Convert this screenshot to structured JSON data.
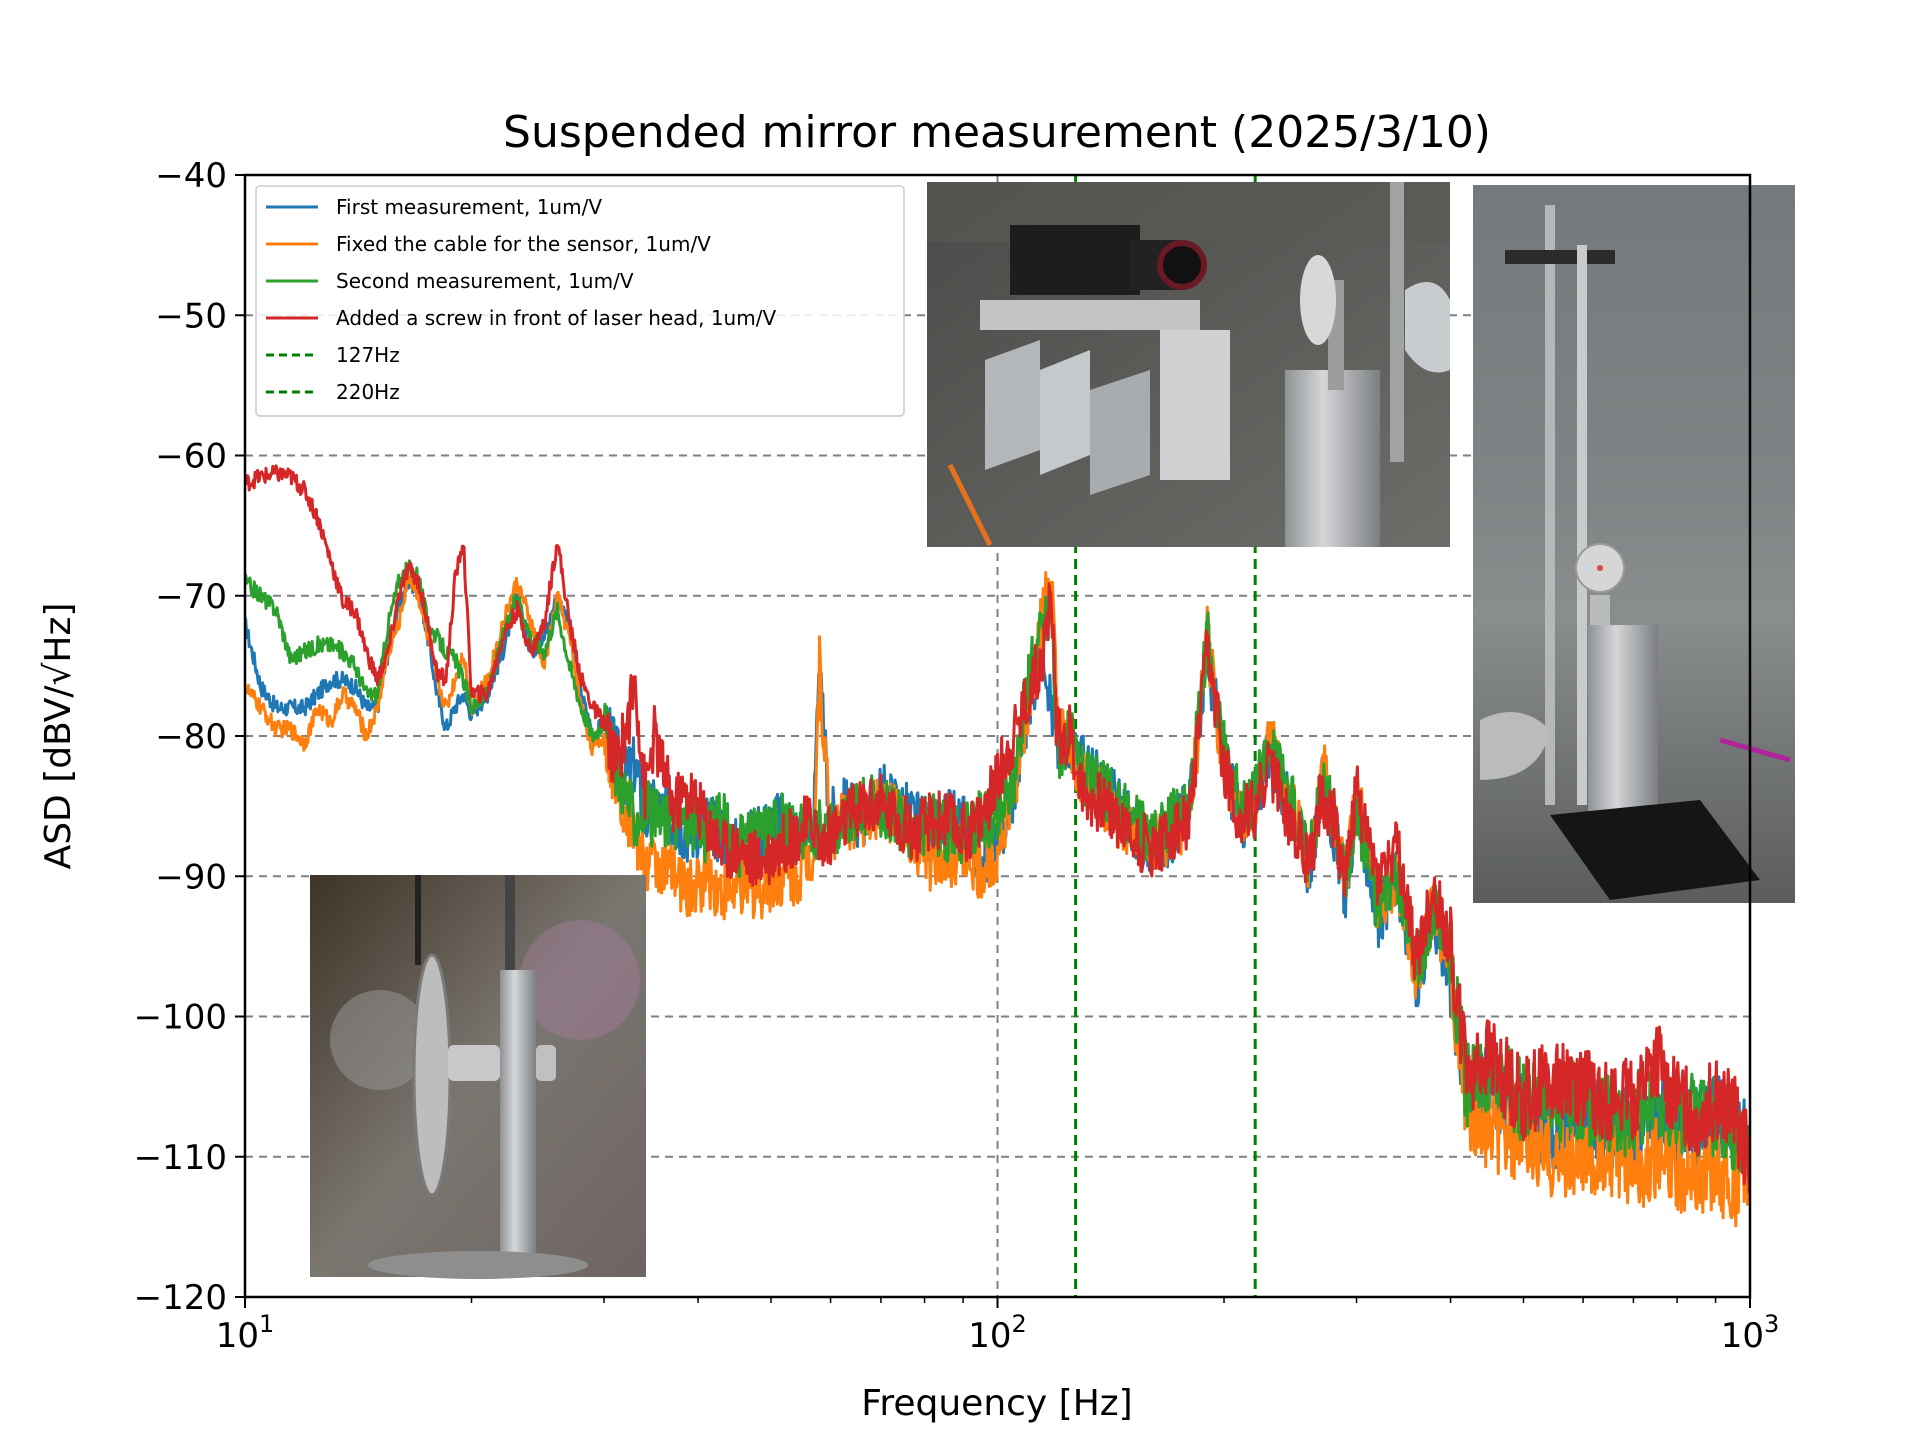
{
  "chart_data": {
    "type": "line",
    "title": "Suspended mirror measurement (2025/3/10)",
    "xlabel": "Frequency [Hz]",
    "ylabel": "ASD [dBV/√Hz]",
    "xscale": "log",
    "xlim": [
      10,
      1000
    ],
    "ylim": [
      -120,
      -40
    ],
    "xticks": [
      10,
      100,
      1000
    ],
    "xtick_labels": [
      {
        "base": "10",
        "exp": "1"
      },
      {
        "base": "10",
        "exp": "2"
      },
      {
        "base": "10",
        "exp": "3"
      }
    ],
    "yticks": [
      -40,
      -50,
      -60,
      -70,
      -80,
      -90,
      -100,
      -110,
      -120
    ],
    "ytick_labels": [
      "−40",
      "−50",
      "−60",
      "−70",
      "−80",
      "−90",
      "−100",
      "−110",
      "−120"
    ],
    "grid": true,
    "legend_position": "top-left",
    "vlines": [
      {
        "name": "127Hz",
        "x": 127,
        "color": "#008000",
        "style": "dashed"
      },
      {
        "name": "220Hz",
        "x": 220,
        "color": "#008000",
        "style": "dashed"
      }
    ],
    "series": [
      {
        "name": "First measurement, 1um/V",
        "color": "#1f77b4",
        "x": [
          10,
          10.5,
          11,
          11.5,
          12,
          12.5,
          13,
          13.5,
          14,
          14.5,
          15,
          15.5,
          16,
          16.5,
          17,
          17.5,
          18,
          18.5,
          19,
          19.5,
          20,
          21,
          22,
          23,
          24,
          25,
          26,
          27,
          28,
          29,
          30,
          31,
          32,
          33,
          34,
          35,
          37,
          39,
          41,
          43,
          45,
          48,
          51,
          54,
          57,
          58,
          60,
          63,
          66,
          70,
          74,
          78,
          82,
          86,
          90,
          95,
          100,
          105,
          110,
          115,
          118,
          120,
          125,
          130,
          140,
          150,
          160,
          170,
          180,
          190,
          195,
          200,
          210,
          220,
          230,
          240,
          250,
          260,
          270,
          280,
          290,
          300,
          320,
          340,
          360,
          380,
          400,
          420,
          450,
          500,
          550,
          600,
          650,
          700,
          750,
          800,
          850,
          900,
          950,
          1000
        ],
        "values": [
          -72,
          -76.5,
          -78,
          -78,
          -78,
          -77,
          -76,
          -76,
          -76.5,
          -78,
          -78,
          -74,
          -71,
          -69,
          -69.5,
          -73,
          -77,
          -79.5,
          -78,
          -77,
          -78.5,
          -77,
          -74,
          -70,
          -74,
          -73,
          -70,
          -72,
          -77,
          -80,
          -79,
          -81,
          -83,
          -82,
          -86,
          -85,
          -86,
          -87,
          -86,
          -87,
          -88,
          -87,
          -86,
          -87,
          -86,
          -76,
          -86,
          -85,
          -86,
          -84,
          -85,
          -86,
          -87,
          -86,
          -86,
          -89,
          -88,
          -84,
          -78,
          -73,
          -78,
          -81,
          -80,
          -82,
          -84,
          -86,
          -88,
          -87,
          -85,
          -74,
          -78,
          -82,
          -86,
          -85,
          -81,
          -84,
          -86,
          -90,
          -83,
          -87,
          -91,
          -85,
          -93,
          -90,
          -98,
          -93,
          -97,
          -106,
          -105,
          -107,
          -108,
          -107,
          -108,
          -108,
          -107,
          -108,
          -108,
          -107,
          -108,
          -109
        ]
      },
      {
        "name": "Fixed the cable for the sensor, 1um/V",
        "color": "#ff7f0e",
        "x": [
          10,
          10.5,
          11,
          11.5,
          12,
          12.5,
          13,
          13.5,
          14,
          14.5,
          15,
          15.5,
          16,
          16.5,
          17,
          17.5,
          18,
          18.5,
          19,
          19.5,
          20,
          21,
          22,
          23,
          24,
          25,
          26,
          27,
          28,
          29,
          30,
          31,
          32,
          33,
          34,
          35,
          37,
          39,
          41,
          43,
          45,
          48,
          51,
          54,
          57,
          58,
          60,
          63,
          66,
          70,
          74,
          78,
          82,
          86,
          90,
          95,
          100,
          105,
          110,
          115,
          118,
          120,
          125,
          130,
          140,
          150,
          160,
          170,
          180,
          190,
          195,
          200,
          210,
          220,
          230,
          240,
          250,
          260,
          270,
          280,
          290,
          300,
          320,
          340,
          360,
          380,
          400,
          420,
          450,
          500,
          550,
          600,
          650,
          700,
          750,
          800,
          850,
          900,
          950,
          1000
        ],
        "values": [
          -76.5,
          -78,
          -79.5,
          -79.5,
          -80.5,
          -78,
          -79,
          -77,
          -78,
          -80,
          -78,
          -74,
          -72,
          -68.5,
          -70,
          -73,
          -76,
          -78,
          -76,
          -74,
          -78,
          -76,
          -72,
          -69,
          -72,
          -75,
          -70,
          -73,
          -78,
          -81,
          -80,
          -83,
          -85,
          -87,
          -89,
          -89,
          -90,
          -91,
          -90,
          -91,
          -91,
          -91,
          -90,
          -90,
          -88,
          -75,
          -87,
          -86,
          -86,
          -85,
          -86,
          -88,
          -89,
          -89,
          -88,
          -90,
          -88,
          -84,
          -78,
          -71,
          -69,
          -79,
          -82,
          -83,
          -85,
          -87,
          -88,
          -87,
          -86,
          -73,
          -78,
          -82,
          -86,
          -85,
          -80,
          -84,
          -86,
          -89,
          -82,
          -86,
          -90,
          -84,
          -92,
          -90,
          -97,
          -92,
          -97,
          -107,
          -108,
          -109,
          -110,
          -110,
          -110,
          -111,
          -110,
          -111,
          -111,
          -111,
          -112,
          -112
        ]
      },
      {
        "name": "Second measurement, 1um/V",
        "color": "#2ca02c",
        "x": [
          10,
          10.5,
          11,
          11.5,
          12,
          12.5,
          13,
          13.5,
          14,
          14.5,
          15,
          15.5,
          16,
          16.5,
          17,
          17.5,
          18,
          18.5,
          19,
          19.5,
          20,
          21,
          22,
          23,
          24,
          25,
          26,
          27,
          28,
          29,
          30,
          31,
          32,
          33,
          34,
          35,
          37,
          39,
          41,
          43,
          45,
          48,
          51,
          54,
          57,
          58,
          60,
          63,
          66,
          70,
          74,
          78,
          82,
          86,
          90,
          95,
          100,
          105,
          110,
          115,
          118,
          120,
          125,
          130,
          140,
          150,
          160,
          170,
          180,
          190,
          195,
          200,
          210,
          220,
          230,
          240,
          250,
          260,
          270,
          280,
          290,
          300,
          320,
          340,
          360,
          380,
          400,
          420,
          450,
          500,
          550,
          600,
          650,
          700,
          750,
          800,
          850,
          900,
          950,
          1000
        ],
        "values": [
          -69,
          -70,
          -71,
          -74.5,
          -74,
          -73.5,
          -73.5,
          -74,
          -75,
          -77,
          -77,
          -72,
          -69,
          -68,
          -68.5,
          -72,
          -73,
          -74,
          -74.5,
          -76,
          -78,
          -77,
          -73,
          -70,
          -73,
          -74,
          -71,
          -75,
          -78,
          -80,
          -79,
          -82,
          -84,
          -86,
          -85,
          -86,
          -86,
          -86,
          -87,
          -86,
          -88,
          -87,
          -86,
          -87,
          -87,
          -86,
          -87,
          -86,
          -85,
          -85,
          -86,
          -87,
          -86,
          -87,
          -87,
          -86,
          -86,
          -83,
          -76,
          -72,
          -71,
          -81,
          -80,
          -83,
          -84,
          -86,
          -87,
          -86,
          -85,
          -73,
          -77,
          -81,
          -85,
          -84,
          -81,
          -83,
          -86,
          -89,
          -83,
          -86,
          -90,
          -85,
          -92,
          -90,
          -97,
          -92,
          -96,
          -105,
          -104,
          -106,
          -106,
          -106,
          -107,
          -107,
          -106,
          -107,
          -107,
          -107,
          -108,
          -108
        ]
      },
      {
        "name": "Added a screw in front of laser head, 1um/V",
        "color": "#d62728",
        "x": [
          10,
          10.5,
          11,
          11.5,
          12,
          12.5,
          13,
          13.5,
          14,
          14.5,
          15,
          15.5,
          16,
          16.5,
          17,
          17.5,
          18,
          18.5,
          19,
          19.5,
          20,
          21,
          22,
          23,
          24,
          25,
          26,
          27,
          28,
          29,
          30,
          31,
          32,
          33,
          34,
          35,
          37,
          39,
          41,
          43,
          45,
          48,
          51,
          54,
          57,
          58,
          60,
          63,
          66,
          70,
          74,
          78,
          82,
          86,
          90,
          95,
          100,
          105,
          110,
          115,
          118,
          120,
          125,
          130,
          140,
          150,
          160,
          170,
          180,
          190,
          195,
          200,
          210,
          220,
          230,
          240,
          250,
          260,
          270,
          280,
          290,
          300,
          320,
          340,
          360,
          380,
          400,
          420,
          450,
          500,
          550,
          600,
          650,
          700,
          750,
          800,
          850,
          900,
          950,
          1000
        ],
        "values": [
          -62,
          -61.5,
          -61.3,
          -61.5,
          -62.5,
          -64.5,
          -67.5,
          -70.5,
          -71,
          -74,
          -76,
          -74,
          -70,
          -68,
          -69,
          -72,
          -75.5,
          -76,
          -69,
          -66,
          -77,
          -77,
          -73,
          -71,
          -74,
          -72,
          -66,
          -72,
          -76,
          -78,
          -79,
          -82,
          -80,
          -76,
          -84,
          -80,
          -85,
          -84,
          -86,
          -88,
          -88,
          -89,
          -88,
          -87,
          -86,
          -88,
          -87,
          -86,
          -85,
          -85,
          -86,
          -87,
          -86,
          -86,
          -87,
          -86,
          -83,
          -80,
          -77,
          -74,
          -70,
          -80,
          -80,
          -84,
          -85,
          -87,
          -88,
          -87,
          -86,
          -74,
          -78,
          -82,
          -86,
          -85,
          -82,
          -85,
          -87,
          -89,
          -84,
          -86,
          -90,
          -84,
          -90,
          -88,
          -96,
          -91,
          -95,
          -104,
          -103,
          -106,
          -104,
          -105,
          -106,
          -106,
          -103,
          -106,
          -107,
          -106,
          -107,
          -110
        ]
      }
    ]
  }
}
